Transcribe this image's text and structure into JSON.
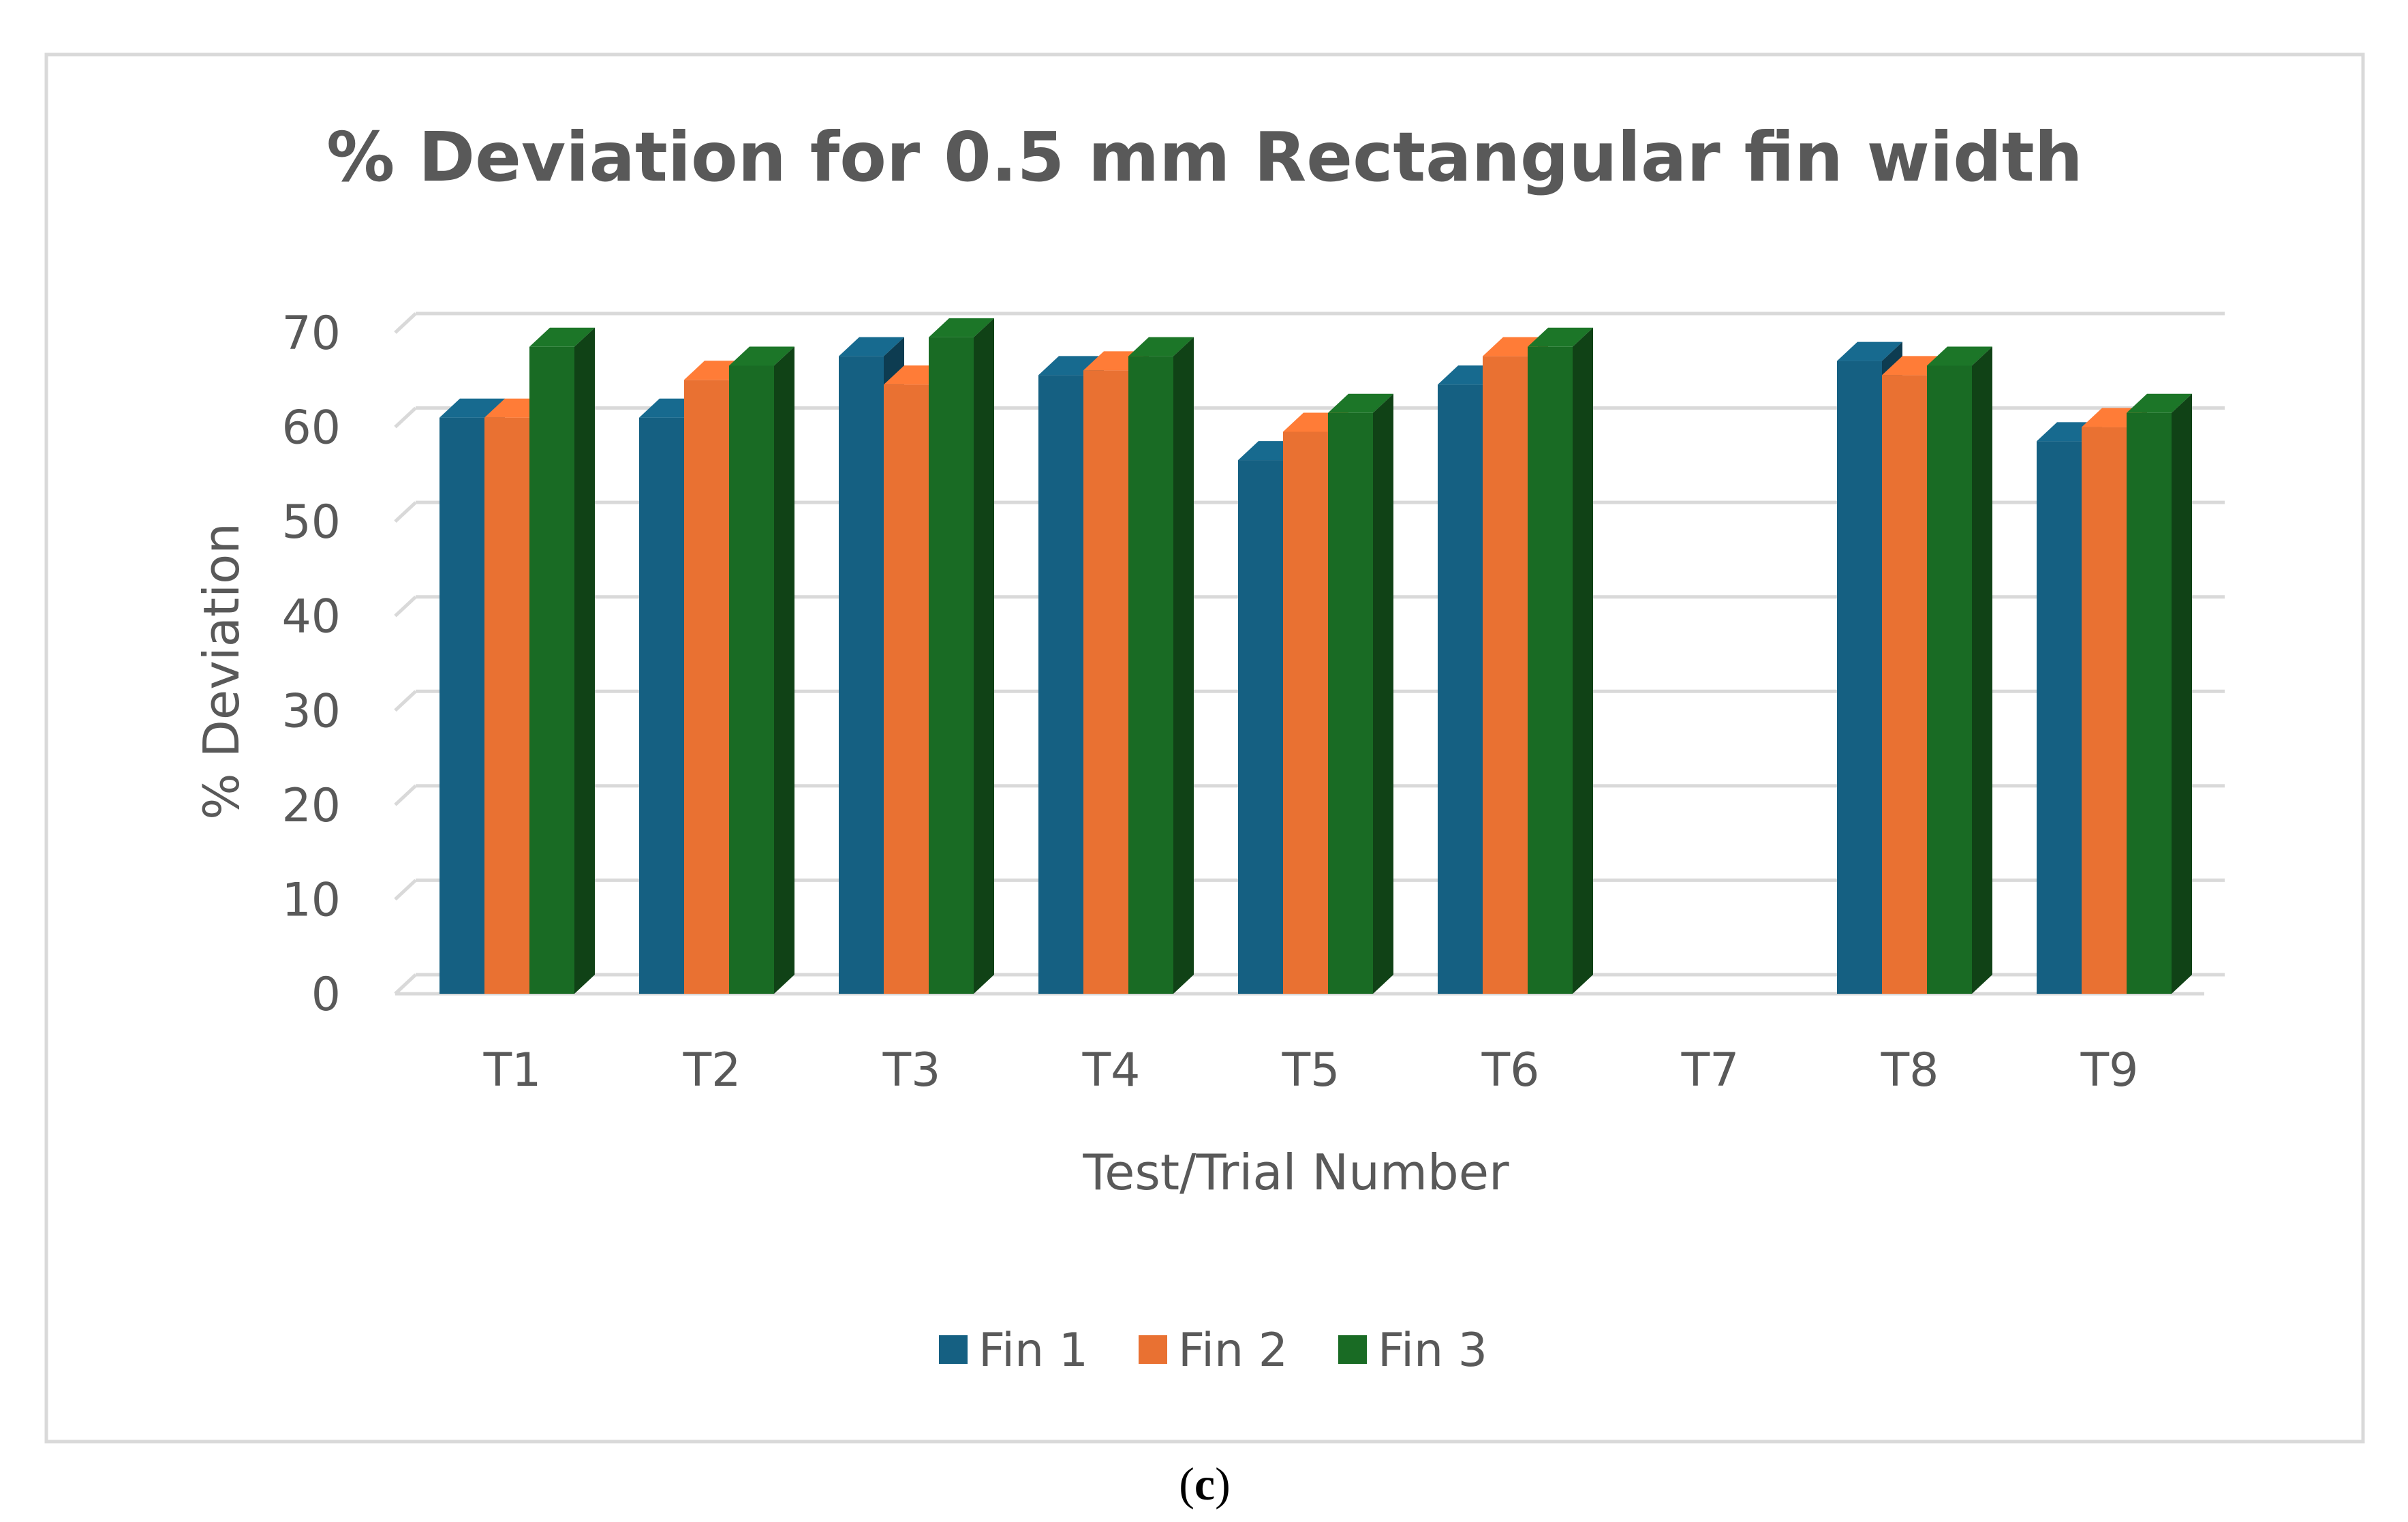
{
  "chart_data": {
    "type": "bar",
    "title": "% Deviation for 0.5 mm Rectangular fin width",
    "xlabel": "Test/Trial Number",
    "ylabel": "% Deviation",
    "ylim": [
      0,
      70
    ],
    "yticks": [
      0,
      10,
      20,
      30,
      40,
      50,
      60,
      70
    ],
    "grid": true,
    "legend_position": "bottom",
    "categories": [
      "T1",
      "T2",
      "T3",
      "T4",
      "T5",
      "T6",
      "T7",
      "T8",
      "T9"
    ],
    "series": [
      {
        "name": "Fin 1",
        "color": "#156082",
        "values": [
          61,
          61,
          67.5,
          65.5,
          56.5,
          64.5,
          null,
          67,
          58.5
        ]
      },
      {
        "name": "Fin 2",
        "color": "#E97132",
        "values": [
          61,
          65,
          64.5,
          66,
          59.5,
          67.5,
          null,
          65.5,
          60
        ]
      },
      {
        "name": "Fin 3",
        "color": "#196B24",
        "values": [
          68.5,
          66.5,
          69.5,
          67.5,
          61.5,
          68.5,
          null,
          66.5,
          61.5
        ]
      }
    ]
  },
  "caption": {
    "open": "(",
    "letter": "c",
    "close": ")"
  }
}
